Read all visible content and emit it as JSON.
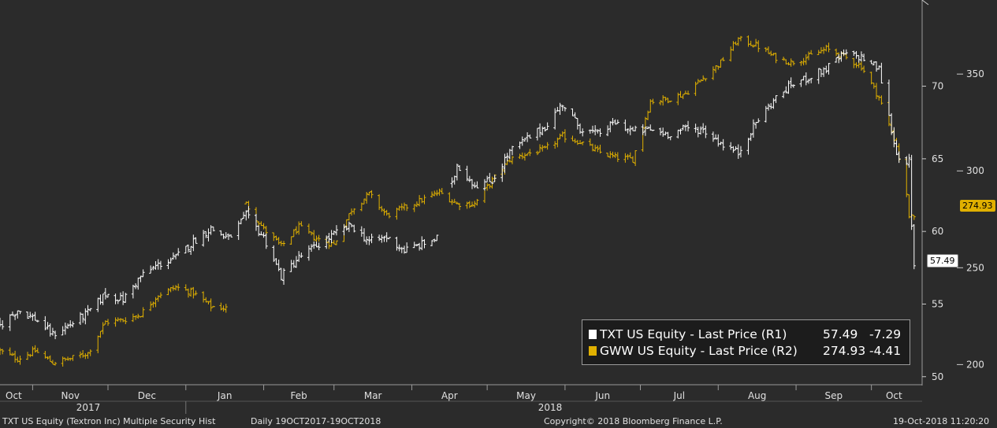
{
  "chart_data": {
    "type": "line",
    "style": "ohlc-bars",
    "x_start": "2017-10-19",
    "x_end": "2018-10-19",
    "months": [
      {
        "label": "Oct",
        "year_label": "2017"
      },
      {
        "label": "Nov"
      },
      {
        "label": "Dec"
      },
      {
        "label": "Jan",
        "year_label": "2018"
      },
      {
        "label": "Feb"
      },
      {
        "label": "Mar"
      },
      {
        "label": "Apr"
      },
      {
        "label": "May"
      },
      {
        "label": "Jun"
      },
      {
        "label": "Jul"
      },
      {
        "label": "Aug"
      },
      {
        "label": "Sep"
      },
      {
        "label": "Oct"
      }
    ],
    "left_axis": {
      "label": "R1",
      "ticks": [
        "50",
        "55",
        "60",
        "65",
        "70"
      ],
      "range": [
        49.5,
        75.5
      ]
    },
    "right_axis": {
      "label": "R2",
      "ticks": [
        "200",
        "250",
        "300",
        "350"
      ],
      "range": [
        190,
        385
      ]
    },
    "grid": false,
    "legend_position": "bottom-right",
    "series": [
      {
        "name": "TXT US Equity - Last Price (R1)",
        "axis": "left",
        "color": "#ffffff",
        "last": "57.49",
        "change": "-7.29",
        "points": [
          [
            "2017-10-19",
            53.5
          ],
          [
            "2017-10-26",
            54.6
          ],
          [
            "2017-11-02",
            54.0
          ],
          [
            "2017-11-09",
            52.9
          ],
          [
            "2017-11-16",
            53.6
          ],
          [
            "2017-11-23",
            54.4
          ],
          [
            "2017-11-30",
            55.7
          ],
          [
            "2017-12-07",
            55.3
          ],
          [
            "2017-12-14",
            56.9
          ],
          [
            "2017-12-21",
            57.7
          ],
          [
            "2017-12-28",
            58.2
          ],
          [
            "2018-01-04",
            59.3
          ],
          [
            "2018-01-11",
            60.2
          ],
          [
            "2018-01-18",
            59.5
          ],
          [
            "2018-01-25",
            61.1
          ],
          [
            "2018-02-01",
            59.6
          ],
          [
            "2018-02-08",
            56.9
          ],
          [
            "2018-02-15",
            58.2
          ],
          [
            "2018-02-22",
            59.0
          ],
          [
            "2018-03-01",
            59.8
          ],
          [
            "2018-03-08",
            60.4
          ],
          [
            "2018-03-15",
            59.3
          ],
          [
            "2018-03-22",
            59.6
          ],
          [
            "2018-03-29",
            58.7
          ],
          [
            "2018-04-05",
            59.1
          ],
          [
            "2018-04-12",
            59.6
          ],
          [
            "2018-04-19",
            64.6
          ],
          [
            "2018-04-26",
            63.2
          ],
          [
            "2018-05-03",
            63.5
          ],
          [
            "2018-05-10",
            65.5
          ],
          [
            "2018-05-17",
            66.4
          ],
          [
            "2018-05-24",
            67.2
          ],
          [
            "2018-05-31",
            68.8
          ],
          [
            "2018-06-07",
            67.1
          ],
          [
            "2018-06-14",
            66.7
          ],
          [
            "2018-06-21",
            67.5
          ],
          [
            "2018-06-28",
            66.9
          ],
          [
            "2018-07-05",
            67.0
          ],
          [
            "2018-07-12",
            66.7
          ],
          [
            "2018-07-19",
            67.1
          ],
          [
            "2018-07-26",
            67.0
          ],
          [
            "2018-08-02",
            66.1
          ],
          [
            "2018-08-09",
            65.4
          ],
          [
            "2018-08-16",
            67.5
          ],
          [
            "2018-08-23",
            69.0
          ],
          [
            "2018-08-30",
            70.1
          ],
          [
            "2018-09-06",
            70.6
          ],
          [
            "2018-09-13",
            71.2
          ],
          [
            "2018-09-20",
            72.2
          ],
          [
            "2018-09-27",
            72.0
          ],
          [
            "2018-10-04",
            71.2
          ],
          [
            "2018-10-11",
            65.3
          ],
          [
            "2018-10-16",
            64.8
          ],
          [
            "2018-10-17",
            60.2
          ],
          [
            "2018-10-18",
            57.49
          ]
        ]
      },
      {
        "name": "GWW US Equity - Last Price (R2)",
        "axis": "right",
        "color": "#e0b000",
        "last": "274.93",
        "change": "-4.41",
        "points": [
          [
            "2017-10-19",
            207
          ],
          [
            "2017-10-26",
            203
          ],
          [
            "2017-11-02",
            207
          ],
          [
            "2017-11-09",
            201
          ],
          [
            "2017-11-16",
            203
          ],
          [
            "2017-11-23",
            206
          ],
          [
            "2017-11-30",
            222
          ],
          [
            "2017-12-07",
            223
          ],
          [
            "2017-12-14",
            226
          ],
          [
            "2017-12-21",
            236
          ],
          [
            "2017-12-28",
            240
          ],
          [
            "2018-01-04",
            237
          ],
          [
            "2018-01-11",
            230
          ],
          [
            "2018-01-18",
            229
          ],
          [
            "2018-01-25",
            283
          ],
          [
            "2018-02-01",
            270
          ],
          [
            "2018-02-08",
            261
          ],
          [
            "2018-02-15",
            271
          ],
          [
            "2018-02-22",
            265
          ],
          [
            "2018-03-01",
            262
          ],
          [
            "2018-03-08",
            280
          ],
          [
            "2018-03-15",
            288
          ],
          [
            "2018-03-22",
            277
          ],
          [
            "2018-03-29",
            281
          ],
          [
            "2018-04-05",
            285
          ],
          [
            "2018-04-12",
            289
          ],
          [
            "2018-04-19",
            283
          ],
          [
            "2018-04-26",
            283
          ],
          [
            "2018-05-03",
            295
          ],
          [
            "2018-05-10",
            306
          ],
          [
            "2018-05-17",
            309
          ],
          [
            "2018-05-24",
            311
          ],
          [
            "2018-05-31",
            318
          ],
          [
            "2018-06-07",
            315
          ],
          [
            "2018-06-14",
            310
          ],
          [
            "2018-06-21",
            307
          ],
          [
            "2018-06-28",
            306
          ],
          [
            "2018-07-05",
            336
          ],
          [
            "2018-07-12",
            337
          ],
          [
            "2018-07-19",
            340
          ],
          [
            "2018-07-26",
            348
          ],
          [
            "2018-08-02",
            356
          ],
          [
            "2018-08-09",
            368
          ],
          [
            "2018-08-16",
            365
          ],
          [
            "2018-08-23",
            359
          ],
          [
            "2018-08-30",
            356
          ],
          [
            "2018-09-06",
            359
          ],
          [
            "2018-09-13",
            363
          ],
          [
            "2018-09-20",
            359
          ],
          [
            "2018-09-27",
            354
          ],
          [
            "2018-10-04",
            338
          ],
          [
            "2018-10-11",
            313
          ],
          [
            "2018-10-15",
            287
          ],
          [
            "2018-10-16",
            277
          ],
          [
            "2018-10-18",
            274.93
          ]
        ]
      }
    ],
    "gaps": [
      {
        "series": 1,
        "from": "2018-01-18",
        "to": "2018-01-24"
      },
      {
        "series": 0,
        "from": "2018-04-12",
        "to": "2018-04-16"
      }
    ]
  },
  "legend": {
    "rows": [
      {
        "label": "TXT US Equity - Last Price (R1)",
        "value": "57.49",
        "change": "-7.29"
      },
      {
        "label": "GWW US Equity - Last Price (R2)",
        "value": "274.93",
        "change": "-4.41"
      }
    ]
  },
  "tags": {
    "left": "57.49",
    "right": "274.93"
  },
  "footer": {
    "security": "TXT US Equity (Textron Inc) Multiple Security Hist",
    "range": "Daily 19OCT2017-19OCT2018",
    "copyright": "Copyright© 2018 Bloomberg Finance L.P.",
    "timestamp": "19-Oct-2018 11:20:20"
  },
  "colors": {
    "background": "#2b2b2b",
    "txt": "#ffffff",
    "gww": "#e0b000",
    "axis": "#9a9a9a"
  }
}
